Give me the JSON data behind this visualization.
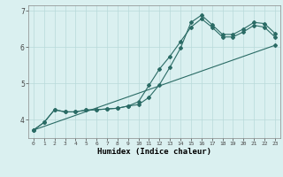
{
  "title": "",
  "xlabel": "Humidex (Indice chaleur)",
  "ylabel": "",
  "xlim": [
    -0.5,
    23.5
  ],
  "ylim": [
    3.5,
    7.15
  ],
  "yticks": [
    4,
    5,
    6,
    7
  ],
  "xticks": [
    0,
    1,
    2,
    3,
    4,
    5,
    6,
    7,
    8,
    9,
    10,
    11,
    12,
    13,
    14,
    15,
    16,
    17,
    18,
    19,
    20,
    21,
    22,
    23
  ],
  "bg_color": "#daf0f0",
  "line_color": "#2a6b65",
  "grid_color": "#b8dada",
  "line1_x": [
    0,
    1,
    2,
    3,
    4,
    5,
    6,
    7,
    8,
    9,
    10,
    11,
    12,
    13,
    14,
    15,
    16,
    17,
    18,
    19,
    20,
    21,
    22,
    23
  ],
  "line1_y": [
    3.72,
    3.93,
    4.28,
    4.22,
    4.22,
    4.27,
    4.28,
    4.3,
    4.32,
    4.38,
    4.42,
    4.62,
    4.97,
    5.45,
    5.97,
    6.68,
    6.88,
    6.62,
    6.35,
    6.35,
    6.5,
    6.68,
    6.65,
    6.38
  ],
  "line2_x": [
    0,
    1,
    2,
    3,
    4,
    5,
    6,
    7,
    8,
    9,
    10,
    11,
    12,
    13,
    14,
    15,
    16,
    17,
    18,
    19,
    20,
    21,
    22,
    23
  ],
  "line2_y": [
    3.72,
    3.93,
    4.28,
    4.22,
    4.22,
    4.27,
    4.28,
    4.3,
    4.32,
    4.38,
    4.5,
    4.95,
    5.4,
    5.75,
    6.15,
    6.55,
    6.78,
    6.55,
    6.28,
    6.28,
    6.42,
    6.6,
    6.55,
    6.28
  ],
  "line3_x": [
    0,
    23
  ],
  "line3_y": [
    3.72,
    6.05
  ],
  "marker": "D",
  "markersize": 2.0,
  "linewidth": 0.8
}
